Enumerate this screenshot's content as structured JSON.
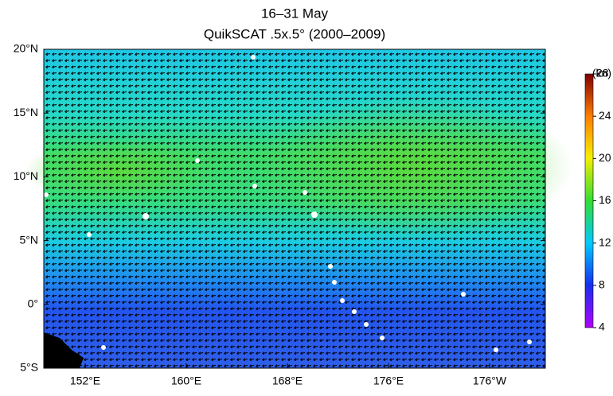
{
  "title": [
    "16–31 May",
    "QuikSCAT .5x.5° (2000–2009)"
  ],
  "y_labels": [
    "20°N",
    "15°N",
    "10°N",
    "5°N",
    "0°",
    "5°S"
  ],
  "x_labels": [
    "152°E",
    "160°E",
    "168°E",
    "176°E",
    "176°W"
  ],
  "colorbar": {
    "lim": [
      4,
      28
    ],
    "ticks": [
      4,
      8,
      12,
      16,
      20,
      24,
      28
    ],
    "unit": "(kn)"
  }
}
